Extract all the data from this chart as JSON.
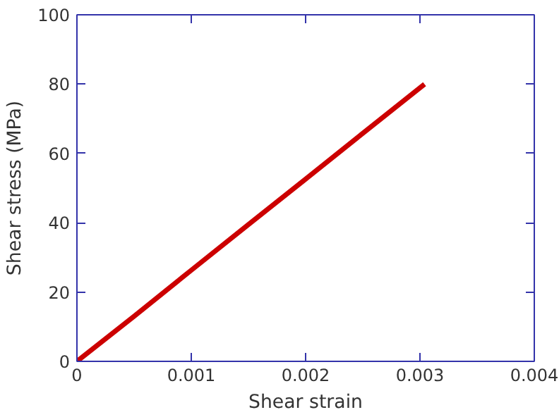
{
  "chart_data": {
    "type": "line",
    "xlabel": "Shear strain",
    "ylabel": "Shear stress (MPa)",
    "x": [
      0,
      0.0005,
      0.001,
      0.0015,
      0.002,
      0.0025,
      0.00304
    ],
    "series": [
      {
        "color": "#cc0000",
        "values": [
          0,
          13,
          26.3,
          39.5,
          52.6,
          65.8,
          80
        ]
      }
    ],
    "xlim": [
      0,
      0.004
    ],
    "xticks": [
      0,
      0.001,
      0.002,
      0.003,
      0.004
    ],
    "ylim": [
      0,
      100
    ],
    "yticks": [
      0,
      20,
      40,
      60,
      80,
      100
    ],
    "grid": false,
    "marker": "none",
    "line_style": "solid"
  }
}
